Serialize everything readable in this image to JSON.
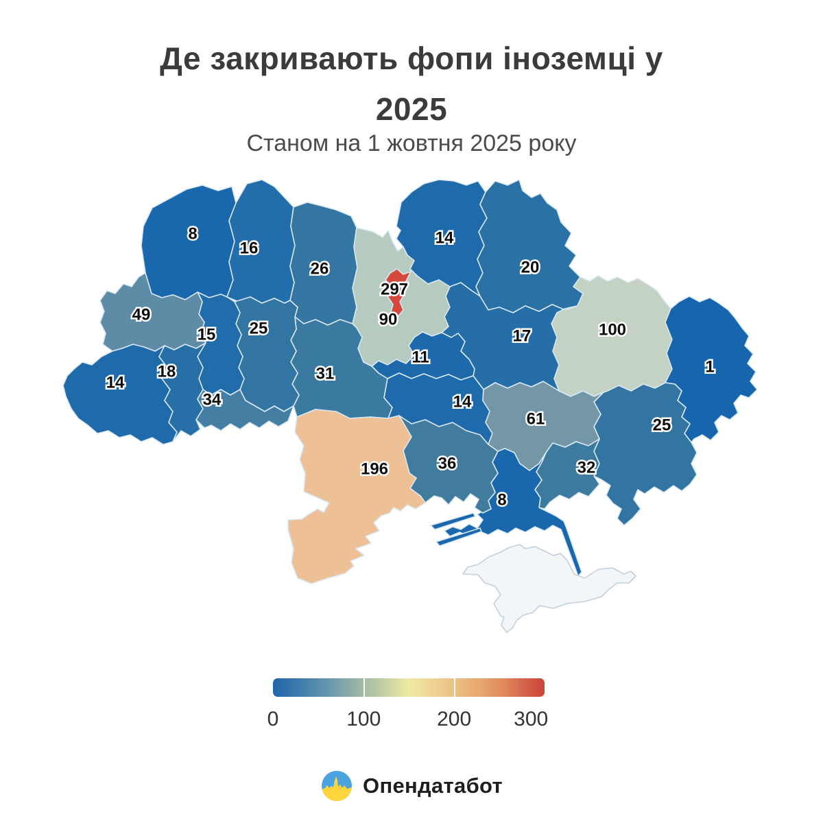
{
  "title": {
    "line1": "Де закривають фопи іноземці у",
    "line2": "2025"
  },
  "subtitle": "Станом на 1 жовтня 2025 року",
  "footer": {
    "brand": "Опендатабот",
    "logo_colors": {
      "top": "#4aa3df",
      "bottom": "#ffd53e"
    }
  },
  "legend": {
    "ticks": [
      "0",
      "100",
      "200",
      "300"
    ],
    "tick_positions_pct": [
      0,
      33.4,
      66.7,
      95
    ],
    "separator_positions_pct": [
      33.3,
      66.6
    ],
    "gradient_stops": [
      "#2166ac 0%",
      "#3f7cad 10%",
      "#6f9bad 22%",
      "#9cb7a5 32%",
      "#c0cda6 40%",
      "#eeeaa2 50%",
      "#f0d598 58%",
      "#ecc084 67%",
      "#e7a96e 76%",
      "#e0885c 85%",
      "#d5614a 93%",
      "#c94435 100%"
    ]
  },
  "chart_data": {
    "type": "heatmap",
    "subtype": "choropleth-map-of-ukraine",
    "title": "Де закривають фопи іноземці у 2025",
    "subtitle": "Станом на 1 жовтня 2025 року",
    "colorbar": {
      "min": 0,
      "max": 300,
      "ticks": [
        0,
        100,
        200,
        300
      ],
      "low_color": "#2166ac",
      "mid_color": "#eeeaa2",
      "high_color": "#c94435"
    },
    "no_data_color": "#f3f6f9",
    "regions": [
      {
        "id": "volyn",
        "value": 8,
        "color": "#1967ad"
      },
      {
        "id": "rivne",
        "value": 16,
        "color": "#226daa"
      },
      {
        "id": "zhytomyr",
        "value": 26,
        "color": "#3376a1"
      },
      {
        "id": "kyiv-oblast",
        "value": 90,
        "color": "#b6cbbf"
      },
      {
        "id": "kyiv-city",
        "value": 297,
        "color": "#d5483c"
      },
      {
        "id": "chernihiv",
        "value": 14,
        "color": "#1f6aab"
      },
      {
        "id": "sumy",
        "value": 20,
        "color": "#2a72a6"
      },
      {
        "id": "lviv",
        "value": 49,
        "color": "#5e8ba6"
      },
      {
        "id": "ternopil",
        "value": 15,
        "color": "#216caa"
      },
      {
        "id": "khmelnytskyi",
        "value": 25,
        "color": "#3275a2"
      },
      {
        "id": "vinnytsia",
        "value": 31,
        "color": "#3a79a0"
      },
      {
        "id": "cherkasy",
        "value": 11,
        "color": "#1d69ac"
      },
      {
        "id": "poltava",
        "value": 17,
        "color": "#256ea8"
      },
      {
        "id": "kharkiv",
        "value": 100,
        "color": "#c3d2c3"
      },
      {
        "id": "luhansk",
        "value": 1,
        "color": "#1765ad"
      },
      {
        "id": "zakarpattia",
        "value": 14,
        "color": "#1f6aab"
      },
      {
        "id": "ivano-frankivsk",
        "value": 18,
        "color": "#2670a7"
      },
      {
        "id": "chernivtsi",
        "value": 34,
        "color": "#447ea2"
      },
      {
        "id": "kirovohrad",
        "value": 14,
        "color": "#1f6aab"
      },
      {
        "id": "dnipro",
        "value": 61,
        "color": "#7497a8"
      },
      {
        "id": "donetsk",
        "value": 25,
        "color": "#3275a2"
      },
      {
        "id": "zaporizhzhia",
        "value": 32,
        "color": "#3c7aa0"
      },
      {
        "id": "odesa",
        "value": 196,
        "color": "#eec095"
      },
      {
        "id": "mykolaiv",
        "value": 36,
        "color": "#417c9e"
      },
      {
        "id": "kherson",
        "value": 8,
        "color": "#1967ad"
      },
      {
        "id": "kherson-spit-1",
        "value": null,
        "color": "#1967ad"
      },
      {
        "id": "kherson-spit-2",
        "value": null,
        "color": "#1967ad"
      },
      {
        "id": "arabat-spit",
        "value": null,
        "color": "#1967ad"
      },
      {
        "id": "crimea",
        "value": null,
        "color": "#f3f6f9"
      }
    ]
  }
}
